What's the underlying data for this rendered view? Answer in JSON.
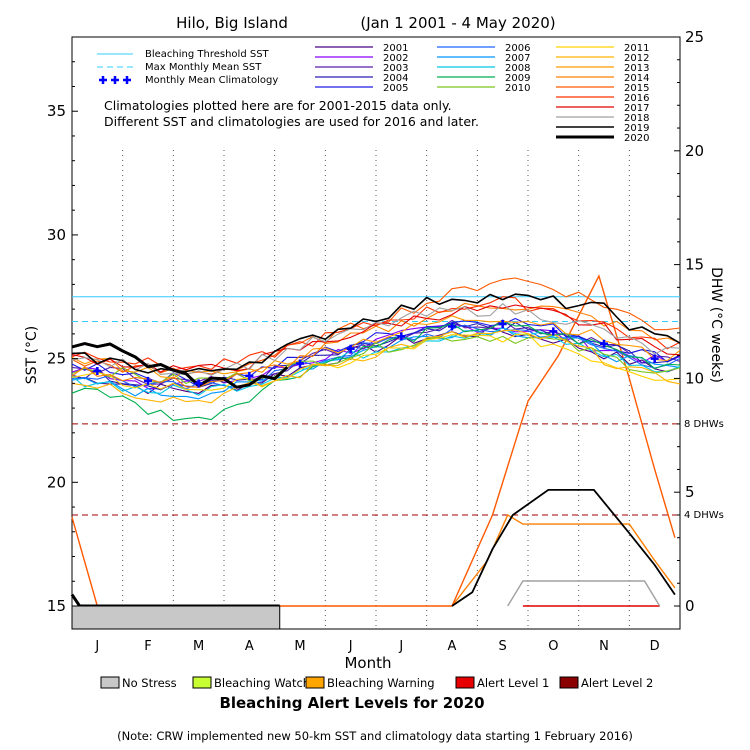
{
  "chart_data": {
    "type": "line",
    "title": "Hilo, Big Island",
    "date_range": "(Jan 1 2001 - 4 May 2020)",
    "xlabel": "Month",
    "ylabel_left": "SST (°C)",
    "ylabel_right": "DHW (°C weeks)",
    "ylim_left": [
      15,
      38
    ],
    "yticks_left": [
      15,
      20,
      25,
      30,
      35
    ],
    "ylim_right": [
      0,
      25
    ],
    "yticks_right": [
      0,
      5,
      10,
      15,
      20,
      25
    ],
    "months": [
      "J",
      "F",
      "M",
      "A",
      "M",
      "J",
      "J",
      "A",
      "S",
      "O",
      "N",
      "D"
    ],
    "reference_lines": {
      "bleaching_threshold_sst": 27.5,
      "max_monthly_mean_sst": 26.5,
      "dhw_8_label": "8 DHWs",
      "dhw_8": 8,
      "dhw_4_label": "4 DHWs",
      "dhw_4": 4
    },
    "legend_reference": [
      "Bleaching Threshold SST",
      "Max Monthly Mean SST",
      "Monthly Mean Climatology"
    ],
    "climatology_note": [
      "Climatologies plotted here are for 2001-2015 data only.",
      "Different SST and climatologies are used for 2016 and later."
    ],
    "monthly_mean_climatology": [
      24.5,
      24.1,
      24.0,
      24.3,
      24.8,
      25.4,
      25.9,
      26.3,
      26.4,
      26.1,
      25.6,
      25.0
    ],
    "years": [
      "2001",
      "2002",
      "2003",
      "2004",
      "2005",
      "2006",
      "2007",
      "2008",
      "2009",
      "2010",
      "2011",
      "2012",
      "2013",
      "2014",
      "2015",
      "2016",
      "2017",
      "2018",
      "2019",
      "2020"
    ],
    "series_colors": {
      "2001": "#4b0082",
      "2002": "#8b00ff",
      "2003": "#5a1ea8",
      "2004": "#2a1fb0",
      "2005": "#1a1ae6",
      "2006": "#1e64ff",
      "2007": "#0096ff",
      "2008": "#00c8e6",
      "2009": "#00b050",
      "2010": "#7cc51c",
      "2011": "#ffd200",
      "2012": "#ffb400",
      "2013": "#ff9b00",
      "2014": "#ff7f00",
      "2015": "#ff5a00",
      "2016": "#ff3000",
      "2017": "#e00000",
      "2018": "#a0a0a0",
      "2019": "#000000",
      "2020": "#000000"
    },
    "sst_profiles": {
      "2001": [
        24.2,
        23.8,
        23.7,
        24.0,
        24.6,
        25.2,
        25.7,
        26.0,
        26.1,
        25.8,
        25.2,
        24.6
      ],
      "2002": [
        24.5,
        24.0,
        24.0,
        24.2,
        24.8,
        25.4,
        25.9,
        26.3,
        26.3,
        26.0,
        25.4,
        24.9
      ],
      "2003": [
        24.6,
        24.2,
        24.0,
        24.3,
        24.9,
        25.5,
        26.0,
        26.4,
        26.5,
        26.1,
        25.6,
        25.0
      ],
      "2004": [
        24.4,
        24.0,
        23.9,
        24.2,
        24.8,
        25.3,
        25.8,
        26.2,
        26.3,
        26.0,
        25.5,
        24.9
      ],
      "2005": [
        24.7,
        24.3,
        24.1,
        24.4,
        25.0,
        25.6,
        26.1,
        26.5,
        26.6,
        26.2,
        25.7,
        25.1
      ],
      "2006": [
        24.3,
        23.9,
        23.8,
        24.1,
        24.7,
        25.3,
        25.8,
        26.1,
        26.2,
        26.0,
        25.4,
        24.8
      ],
      "2007": [
        24.0,
        23.6,
        23.6,
        23.9,
        24.6,
        25.2,
        25.7,
        26.1,
        26.2,
        25.9,
        25.3,
        24.6
      ],
      "2008": [
        24.1,
        23.7,
        23.7,
        24.0,
        24.6,
        25.1,
        25.6,
        26.0,
        26.1,
        25.8,
        25.2,
        24.5
      ],
      "2009": [
        23.8,
        22.9,
        22.5,
        23.5,
        24.5,
        25.2,
        25.8,
        26.2,
        26.3,
        26.0,
        25.5,
        24.8
      ],
      "2010": [
        24.6,
        24.2,
        24.1,
        24.3,
        24.7,
        25.2,
        25.6,
        25.9,
        25.9,
        25.7,
        25.1,
        24.5
      ],
      "2011": [
        24.2,
        23.9,
        23.8,
        24.0,
        24.4,
        24.9,
        25.4,
        25.8,
        25.9,
        25.6,
        24.9,
        24.3
      ],
      "2012": [
        24.0,
        23.5,
        23.3,
        23.8,
        24.4,
        25.0,
        25.5,
        25.9,
        26.0,
        25.8,
        25.0,
        24.2
      ],
      "2013": [
        24.9,
        24.5,
        24.3,
        24.5,
        25.1,
        25.6,
        26.1,
        26.6,
        26.7,
        26.4,
        25.8,
        25.1
      ],
      "2014": [
        24.5,
        24.1,
        24.0,
        24.3,
        25.0,
        25.8,
        26.4,
        27.0,
        27.2,
        27.0,
        26.5,
        25.8
      ],
      "2015": [
        24.8,
        24.5,
        24.4,
        24.8,
        25.5,
        26.2,
        26.9,
        27.6,
        28.3,
        27.9,
        27.2,
        26.3
      ],
      "2016": [
        25.2,
        24.8,
        24.6,
        24.9,
        25.6,
        26.1,
        26.7,
        27.1,
        27.3,
        27.0,
        26.4,
        25.6
      ],
      "2017": [
        25.0,
        24.7,
        24.5,
        24.8,
        25.4,
        26.0,
        26.5,
        26.9,
        27.0,
        26.8,
        26.2,
        25.4
      ],
      "2018": [
        24.9,
        24.6,
        24.5,
        24.8,
        25.5,
        26.0,
        26.6,
        26.9,
        27.0,
        26.7,
        26.1,
        25.3
      ],
      "2019": [
        25.0,
        24.6,
        24.4,
        24.9,
        25.6,
        26.4,
        27.0,
        27.5,
        27.5,
        27.3,
        27.0,
        25.8
      ],
      "2020": [
        25.6,
        24.8,
        24.1,
        24.0,
        24.6
      ]
    },
    "dhw_profiles": {
      "2015": [
        [
          0,
          3.9
        ],
        [
          0.5,
          0
        ],
        [
          7.5,
          0
        ],
        [
          8.3,
          4
        ],
        [
          9.0,
          9
        ],
        [
          9.6,
          11
        ],
        [
          10.4,
          14.5
        ],
        [
          11.0,
          10
        ],
        [
          11.5,
          6
        ],
        [
          11.9,
          3
        ]
      ],
      "2014": [
        [
          7.5,
          0
        ],
        [
          8.2,
          2
        ],
        [
          8.6,
          4
        ],
        [
          8.9,
          3.6
        ],
        [
          10.3,
          3.6
        ],
        [
          11.0,
          3.6
        ],
        [
          11.5,
          2
        ],
        [
          11.9,
          0.8
        ]
      ],
      "2019": [
        [
          7.5,
          0
        ],
        [
          7.9,
          0.6
        ],
        [
          8.3,
          2.5
        ],
        [
          8.7,
          4
        ],
        [
          9.4,
          5.1
        ],
        [
          10.3,
          5.1
        ],
        [
          11.0,
          3.2
        ],
        [
          11.5,
          1.8
        ],
        [
          11.9,
          0.5
        ]
      ],
      "2018": [
        [
          8.6,
          0
        ],
        [
          8.9,
          1.1
        ],
        [
          11.3,
          1.1
        ],
        [
          11.6,
          0
        ]
      ],
      "2017": [
        [
          8.9,
          0
        ],
        [
          11.6,
          0
        ]
      ],
      "2020": [
        [
          0,
          0.5
        ],
        [
          0.15,
          0
        ],
        [
          4.1,
          0
        ]
      ]
    },
    "alert_bar": {
      "label": "No Stress",
      "end_month": 4.1
    },
    "alert_legend": [
      {
        "label": "No Stress",
        "color": "#c8c8c8"
      },
      {
        "label": "Bleaching Watch",
        "color": "#c8ff32"
      },
      {
        "label": "Bleaching Warning",
        "color": "#ffa500"
      },
      {
        "label": "Alert Level 1",
        "color": "#e60000"
      },
      {
        "label": "Alert Level 2",
        "color": "#8b0000"
      }
    ],
    "alert_title": "Bleaching Alert Levels for 2020",
    "footnote": "(Note: CRW implemented new 50-km SST and climatology data starting 1 February 2016)"
  }
}
